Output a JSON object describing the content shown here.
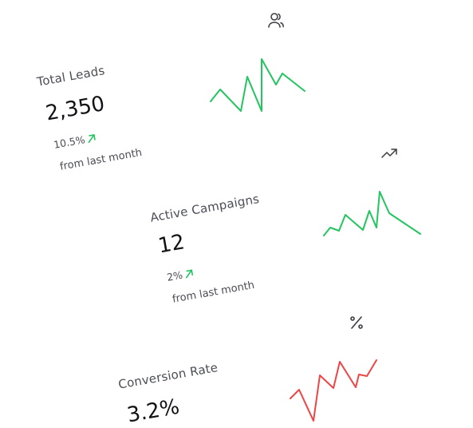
{
  "cards": [
    {
      "title": "Total Leads",
      "value": "2,350",
      "delta": "10.5%",
      "period": "from last month",
      "icon": "users-icon",
      "trend": "up",
      "spark_color": "#22c55e"
    },
    {
      "title": "Active Campaigns",
      "value": "12",
      "delta": "2%",
      "period": "from last month",
      "icon": "trending-up-icon",
      "trend": "up",
      "spark_color": "#22c55e"
    },
    {
      "title": "Conversion Rate",
      "value": "3.2%",
      "icon": "percent-icon",
      "spark_color": "#ef4444"
    }
  ],
  "colors": {
    "up": "#22c55e",
    "down": "#ef4444",
    "text": "#4b4d55"
  }
}
